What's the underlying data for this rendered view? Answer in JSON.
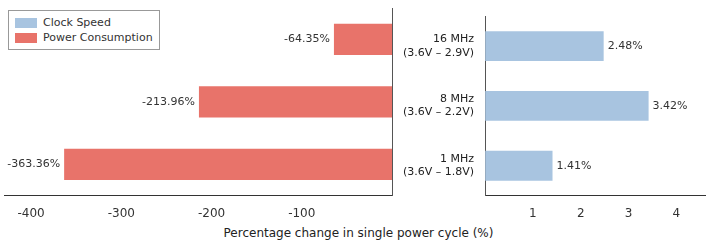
{
  "chart_data": [
    {
      "type": "bar",
      "orientation": "horizontal",
      "categories": [
        [
          "16 MHz",
          "(3.6V – 2.9V)"
        ],
        [
          "8 MHz",
          "(3.6V – 2.2V)"
        ],
        [
          "1 MHz",
          "(3.6V – 1.8V)"
        ]
      ],
      "series": [
        {
          "name": "Power Consumption",
          "color": "#E8736A",
          "values": [
            -64.35,
            -213.96,
            -363.36
          ],
          "value_labels": [
            "-64.35%",
            "-213.96%",
            "-363.36%"
          ]
        }
      ],
      "xlim": [
        -430,
        0
      ],
      "xticks": [
        -400,
        -300,
        -200,
        -100
      ],
      "xlabel": "Percentage change in single power cycle (%)",
      "data_labels": true,
      "legend": "upper left",
      "grid": false,
      "tick_labels": "x"
    },
    {
      "type": "bar",
      "orientation": "horizontal",
      "categories": [
        [
          "16 MHz",
          "(3.6V – 2.9V)"
        ],
        [
          "8 MHz",
          "(3.6V – 2.2V)"
        ],
        [
          "1 MHz",
          "(3.6V – 1.8V)"
        ]
      ],
      "series": [
        {
          "name": "Clock Speed",
          "color": "#A8C4E0",
          "values": [
            2.48,
            3.42,
            1.41
          ],
          "value_labels": [
            "2.48%",
            "3.42%",
            "1.41%"
          ]
        }
      ],
      "xlim": [
        0,
        4.6
      ],
      "xticks": [
        1,
        2,
        3,
        4
      ],
      "data_labels": true,
      "grid": false
    }
  ]
}
